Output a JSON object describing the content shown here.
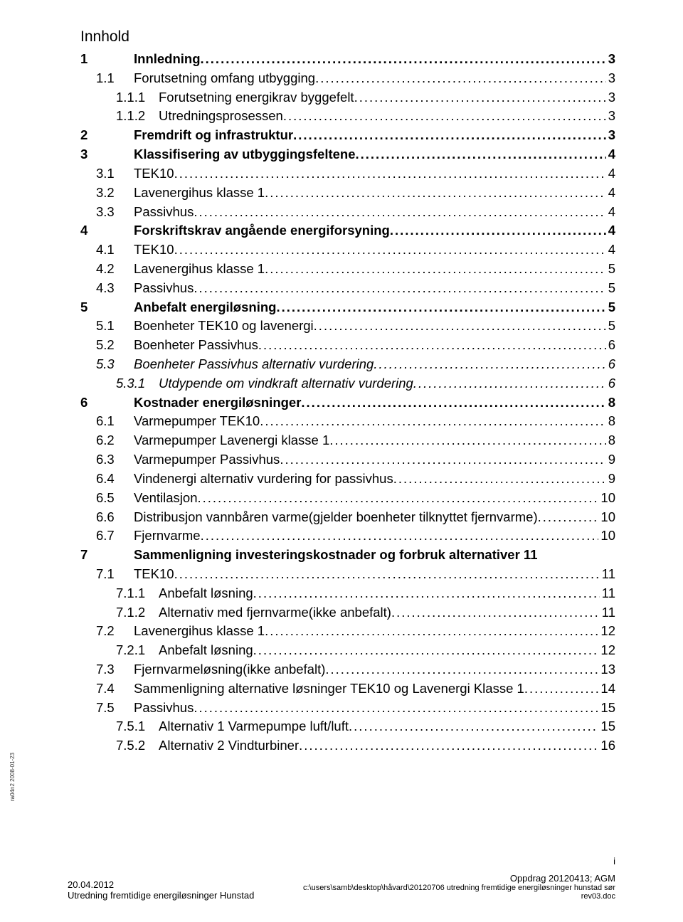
{
  "toc_title": "Innhold",
  "sidebar_text": "ra04n2 2008-01-23",
  "page_number": "i",
  "footer": {
    "date": "20.04.2012",
    "doc_title": "Utredning fremtidige energiløsninger Hunstad",
    "assignment": "Oppdrag 20120413; AGM",
    "path": "c:\\users\\samb\\desktop\\håvard\\20120706 utredning fremtidige energiløsninger hunstad sør",
    "rev": "rev03.doc"
  },
  "entries": [
    {
      "level": 1,
      "num": "1",
      "text": "Innledning",
      "page": "3",
      "bold": true
    },
    {
      "level": 2,
      "num": "1.1",
      "text": "Forutsetning omfang utbygging",
      "page": "3"
    },
    {
      "level": 3,
      "num": "1.1.1",
      "text": "Forutsetning energikrav byggefelt",
      "page": "3"
    },
    {
      "level": 3,
      "num": "1.1.2",
      "text": "Utredningsprosessen",
      "page": "3"
    },
    {
      "level": 1,
      "num": "2",
      "text": "Fremdrift og infrastruktur",
      "page": "3",
      "bold": true
    },
    {
      "level": 1,
      "num": "3",
      "text": "Klassifisering av utbyggingsfeltene",
      "page": "4",
      "bold": true
    },
    {
      "level": 2,
      "num": "3.1",
      "text": "TEK10",
      "page": "4"
    },
    {
      "level": 2,
      "num": "3.2",
      "text": "Lavenergihus klasse 1",
      "page": "4"
    },
    {
      "level": 2,
      "num": "3.3",
      "text": "Passivhus",
      "page": "4"
    },
    {
      "level": 1,
      "num": "4",
      "text": "Forskriftskrav angående energiforsyning",
      "page": "4",
      "bold": true
    },
    {
      "level": 2,
      "num": "4.1",
      "text": "TEK10",
      "page": "4"
    },
    {
      "level": 2,
      "num": "4.2",
      "text": "Lavenergihus klasse 1",
      "page": "5"
    },
    {
      "level": 2,
      "num": "4.3",
      "text": "Passivhus",
      "page": "5"
    },
    {
      "level": 1,
      "num": "5",
      "text": "Anbefalt energiløsning",
      "page": "5",
      "bold": true
    },
    {
      "level": 2,
      "num": "5.1",
      "text": "Boenheter TEK10 og lavenergi",
      "page": "5"
    },
    {
      "level": 2,
      "num": "5.2",
      "text": "Boenheter Passivhus",
      "page": "6"
    },
    {
      "level": 2,
      "num": "5.3",
      "text": "Boenheter Passivhus alternativ vurdering",
      "page": "6",
      "italic": true
    },
    {
      "level": 3,
      "num": "5.3.1",
      "text": "Utdypende om vindkraft alternativ vurdering",
      "page": "6",
      "italic": true
    },
    {
      "level": 1,
      "num": "6",
      "text": "Kostnader energiløsninger",
      "page": "8",
      "bold": true
    },
    {
      "level": 2,
      "num": "6.1",
      "text": "Varmepumper TEK10",
      "page": "8"
    },
    {
      "level": 2,
      "num": "6.2",
      "text": "Varmepumper Lavenergi klasse 1",
      "page": "8"
    },
    {
      "level": 2,
      "num": "6.3",
      "text": "Varmepumper Passivhus",
      "page": "9"
    },
    {
      "level": 2,
      "num": "6.4",
      "text": "Vindenergi alternativ vurdering for passivhus",
      "page": "9"
    },
    {
      "level": 2,
      "num": "6.5",
      "text": "Ventilasjon",
      "page": "10"
    },
    {
      "level": 2,
      "num": "6.6",
      "text": "Distribusjon vannbåren varme(gjelder boenheter tilknyttet fjernvarme)",
      "page": "10"
    },
    {
      "level": 2,
      "num": "6.7",
      "text": "Fjernvarme",
      "page": "10"
    },
    {
      "level": 1,
      "num": "7",
      "text": "Sammenligning investeringskostnader og forbruk alternativer 11",
      "page": "",
      "bold": true,
      "nopage": true
    },
    {
      "level": 2,
      "num": "7.1",
      "text": "TEK10",
      "page": "11"
    },
    {
      "level": 3,
      "num": "7.1.1",
      "text": "Anbefalt løsning",
      "page": "11"
    },
    {
      "level": 3,
      "num": "7.1.2",
      "text": "Alternativ med fjernvarme(ikke anbefalt)",
      "page": "11"
    },
    {
      "level": 2,
      "num": "7.2",
      "text": "Lavenergihus klasse 1",
      "page": "12"
    },
    {
      "level": 3,
      "num": "7.2.1",
      "text": "Anbefalt løsning",
      "page": "12"
    },
    {
      "level": 2,
      "num": "7.3",
      "text": "Fjernvarmeløsning(ikke anbefalt)",
      "page": "13"
    },
    {
      "level": 2,
      "num": "7.4",
      "text": "Sammenligning alternative løsninger TEK10 og Lavenergi Klasse 1",
      "page": "14"
    },
    {
      "level": 2,
      "num": "7.5",
      "text": "Passivhus",
      "page": "15"
    },
    {
      "level": 3,
      "num": "7.5.1",
      "text": "Alternativ 1 Varmepumpe luft/luft",
      "page": "15"
    },
    {
      "level": 3,
      "num": "7.5.2",
      "text": "Alternativ 2 Vindturbiner",
      "page": "16"
    }
  ]
}
